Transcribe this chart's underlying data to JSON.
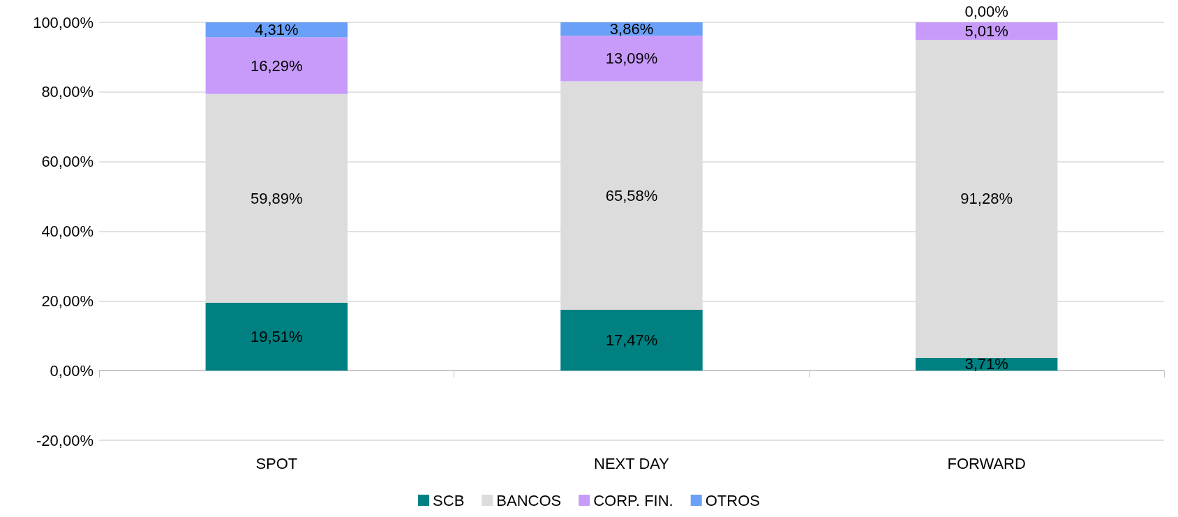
{
  "chart_data": {
    "type": "bar",
    "stacked": true,
    "categories": [
      "SPOT",
      "NEXT DAY",
      "FORWARD"
    ],
    "series": [
      {
        "name": "SCB",
        "color": "#008080",
        "values": [
          19.51,
          17.47,
          3.71
        ],
        "value_labels": [
          "19,51%",
          "17,47%",
          "3,71%"
        ]
      },
      {
        "name": "BANCOS",
        "color": "#dcdcdc",
        "values": [
          59.89,
          65.58,
          91.28
        ],
        "value_labels": [
          "59,89%",
          "65,58%",
          "91,28%"
        ]
      },
      {
        "name": "CORP. FIN.",
        "color": "#c89bfa",
        "values": [
          16.29,
          13.09,
          5.01
        ],
        "value_labels": [
          "16,29%",
          "13,09%",
          "5,01%"
        ]
      },
      {
        "name": "OTROS",
        "color": "#6aa0f8",
        "values": [
          4.31,
          3.86,
          0.0
        ],
        "value_labels": [
          "4,31%",
          "3,86%",
          "0,00%"
        ]
      }
    ],
    "ylim": [
      -20,
      100
    ],
    "yticks": [
      {
        "value": -20,
        "label": "-20,00%"
      },
      {
        "value": 0,
        "label": "0,00%"
      },
      {
        "value": 20,
        "label": "20,00%"
      },
      {
        "value": 40,
        "label": "40,00%"
      },
      {
        "value": 60,
        "label": "60,00%"
      },
      {
        "value": 80,
        "label": "80,00%"
      },
      {
        "value": 100,
        "label": "100,00%"
      }
    ],
    "grid": "y",
    "legend": "bottom"
  }
}
